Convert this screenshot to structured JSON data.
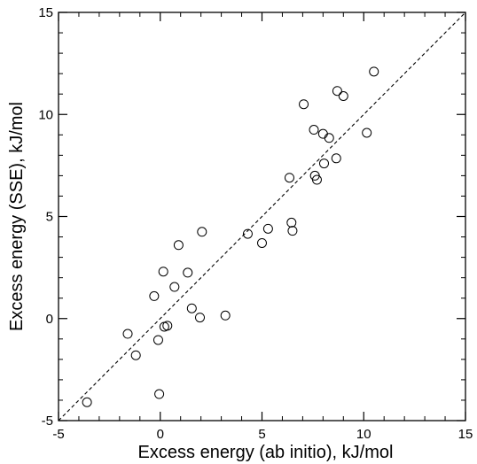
{
  "chart_data": {
    "type": "scatter",
    "title": "",
    "xlabel": "Excess energy (ab initio), kJ/mol",
    "ylabel": "Excess energy (SSE), kJ/mol",
    "xlim": [
      -5,
      15
    ],
    "ylim": [
      -5,
      15
    ],
    "xticks": [
      -5,
      0,
      5,
      10,
      15
    ],
    "yticks": [
      -5,
      0,
      5,
      10,
      15
    ],
    "xtick_labels": [
      "-5",
      "0",
      "5",
      "10",
      "15"
    ],
    "ytick_labels": [
      "-5",
      "0",
      "5",
      "10",
      "15"
    ],
    "minor_step": 1,
    "grid": false,
    "legend": "none",
    "reference_line": {
      "style": "dashed",
      "from": [
        -5,
        -5
      ],
      "to": [
        15,
        15
      ]
    },
    "series": [
      {
        "marker": "open-circle",
        "x": [
          -3.6,
          -1.6,
          -1.2,
          -0.3,
          -0.1,
          -0.05,
          0.15,
          0.2,
          0.35,
          0.7,
          0.9,
          1.35,
          1.55,
          1.95,
          2.05,
          3.2,
          4.3,
          5.0,
          5.3,
          6.35,
          6.45,
          6.5,
          7.05,
          7.55,
          7.6,
          7.7,
          8.0,
          8.05,
          8.3,
          8.65,
          8.7,
          9.0,
          10.15,
          10.5
        ],
        "y": [
          -4.1,
          -0.75,
          -1.8,
          1.1,
          -1.05,
          -3.7,
          2.3,
          -0.4,
          -0.35,
          1.55,
          3.6,
          2.25,
          0.5,
          0.05,
          4.25,
          0.15,
          4.15,
          3.7,
          4.4,
          6.9,
          4.7,
          4.3,
          10.5,
          9.25,
          7.0,
          6.8,
          9.05,
          7.6,
          8.85,
          7.85,
          11.15,
          10.9,
          9.1,
          12.1
        ]
      }
    ]
  }
}
